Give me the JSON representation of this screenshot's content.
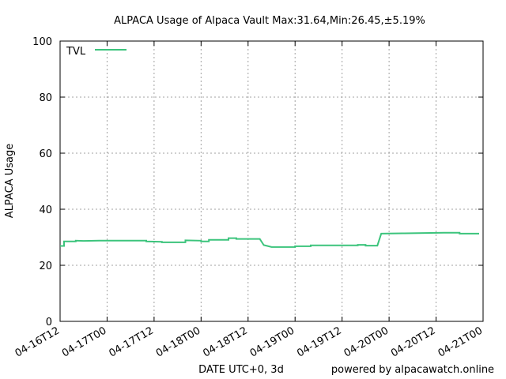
{
  "chart_data": {
    "type": "line",
    "title": "ALPACA Usage of Alpaca Vault Max:31.64,Min:26.45,±5.19%",
    "xlabel": "DATE UTC+0, 3d",
    "ylabel": "ALPACA Usage",
    "credit": "powered by alpacawatch.online",
    "ylim": [
      0,
      100
    ],
    "yticks": [
      0,
      20,
      40,
      60,
      80,
      100
    ],
    "xlim": [
      "2021-04-16T12:00",
      "2021-04-21T00:00"
    ],
    "xtick_labels": [
      "04-16T12",
      "04-17T00",
      "04-17T12",
      "04-18T00",
      "04-18T12",
      "04-19T00",
      "04-19T12",
      "04-20T00",
      "04-20T12",
      "04-21T00"
    ],
    "grid": true,
    "legend": {
      "position": "top-left"
    },
    "line_color": "#3cc47c",
    "series": [
      {
        "name": "TVL",
        "points": [
          [
            "2021-04-16T12:00",
            26.9
          ],
          [
            "2021-04-16T13:00",
            26.9
          ],
          [
            "2021-04-16T13:00",
            28.5
          ],
          [
            "2021-04-16T16:00",
            28.5
          ],
          [
            "2021-04-16T16:00",
            28.8
          ],
          [
            "2021-04-16T18:00",
            28.7
          ],
          [
            "2021-04-16T22:00",
            28.8
          ],
          [
            "2021-04-17T06:00",
            28.8
          ],
          [
            "2021-04-17T10:00",
            28.8
          ],
          [
            "2021-04-17T10:00",
            28.5
          ],
          [
            "2021-04-17T14:00",
            28.4
          ],
          [
            "2021-04-17T14:00",
            28.2
          ],
          [
            "2021-04-17T20:00",
            28.2
          ],
          [
            "2021-04-17T20:00",
            28.9
          ],
          [
            "2021-04-18T00:00",
            28.8
          ],
          [
            "2021-04-18T00:00",
            28.5
          ],
          [
            "2021-04-18T02:00",
            28.5
          ],
          [
            "2021-04-18T02:00",
            29.1
          ],
          [
            "2021-04-18T07:00",
            29.1
          ],
          [
            "2021-04-18T07:00",
            29.7
          ],
          [
            "2021-04-18T09:00",
            29.7
          ],
          [
            "2021-04-18T09:00",
            29.4
          ],
          [
            "2021-04-18T13:00",
            29.4
          ],
          [
            "2021-04-18T15:00",
            29.4
          ],
          [
            "2021-04-18T16:00",
            27.2
          ],
          [
            "2021-04-18T18:00",
            26.5
          ],
          [
            "2021-04-19T00:00",
            26.5
          ],
          [
            "2021-04-19T00:00",
            26.8
          ],
          [
            "2021-04-19T04:00",
            26.8
          ],
          [
            "2021-04-19T04:00",
            27.1
          ],
          [
            "2021-04-19T16:00",
            27.1
          ],
          [
            "2021-04-19T16:00",
            27.3
          ],
          [
            "2021-04-19T18:00",
            27.3
          ],
          [
            "2021-04-19T18:00",
            27.0
          ],
          [
            "2021-04-19T21:00",
            27.0
          ],
          [
            "2021-04-19T22:00",
            31.3
          ],
          [
            "2021-04-20T04:00",
            31.4
          ],
          [
            "2021-04-20T14:00",
            31.6
          ],
          [
            "2021-04-20T18:00",
            31.6
          ],
          [
            "2021-04-20T18:00",
            31.3
          ],
          [
            "2021-04-20T23:00",
            31.3
          ]
        ]
      }
    ]
  }
}
